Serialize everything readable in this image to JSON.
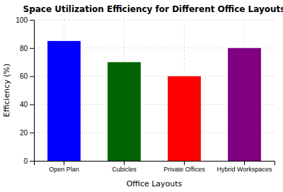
{
  "chart_data": {
    "type": "bar",
    "title": "Space Utilization Efficiency for Different Office Layouts",
    "xlabel": "Office Layouts",
    "ylabel": "Efficiency (%)",
    "categories": [
      "Open Plan",
      "Cubicles",
      "Private Offices",
      "Hybrid Workspaces"
    ],
    "values": [
      85,
      70,
      60,
      80
    ],
    "colors": [
      "#0000ff",
      "#006400",
      "#ff0000",
      "#800080"
    ],
    "ylim": [
      0,
      100
    ],
    "yticks": [
      0,
      20,
      40,
      60,
      80,
      100
    ],
    "grid": true
  }
}
